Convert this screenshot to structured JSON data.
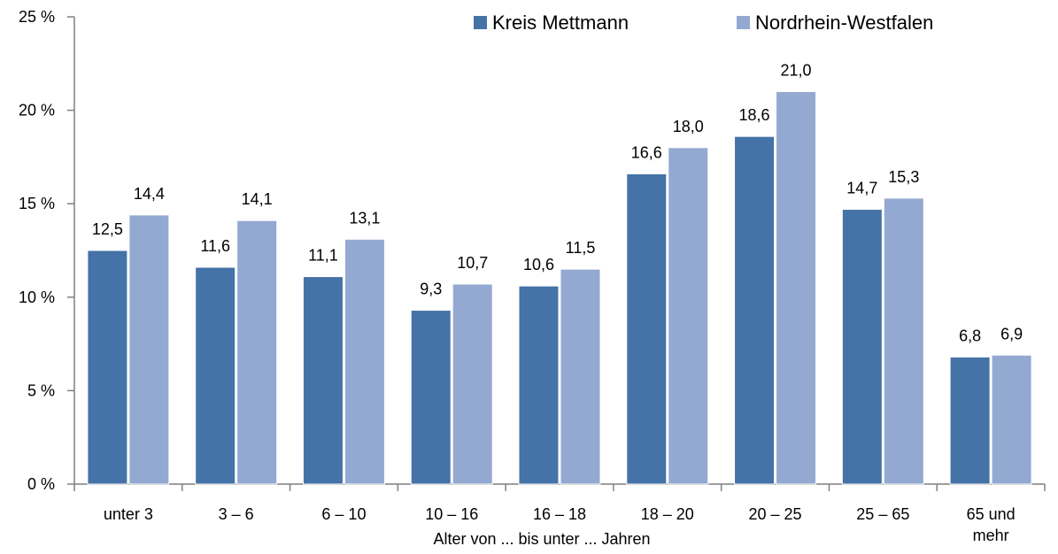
{
  "chart_data": {
    "type": "bar",
    "categories": [
      "unter 3",
      "3 –  6",
      "6 – 10",
      "10 – 16",
      "16 – 18",
      "18 – 20",
      "20 – 25",
      "25 – 65",
      [
        "65 und",
        "mehr"
      ]
    ],
    "series": [
      {
        "name": "Kreis Mettmann",
        "color": "#4572A7",
        "values": [
          12.5,
          11.6,
          11.1,
          9.3,
          10.6,
          16.6,
          18.6,
          14.7,
          6.8
        ],
        "labels": [
          "12,5",
          "11,6",
          "11,1",
          "9,3",
          "10,6",
          "16,6",
          "18,6",
          "14,7",
          "6,8"
        ]
      },
      {
        "name": "Nordrhein-Westfalen",
        "color": "#93A9D1",
        "values": [
          14.4,
          14.1,
          13.1,
          10.7,
          11.5,
          18.0,
          21.0,
          15.3,
          6.9
        ],
        "labels": [
          "14,4",
          "14,1",
          "13,1",
          "10,7",
          "11,5",
          "18,0",
          "21,0",
          "15,3",
          "6,9"
        ]
      }
    ],
    "xlabel": "Alter von ... bis unter ... Jahren",
    "ylabel": "",
    "ylim": [
      0,
      25
    ],
    "yticks": [
      0,
      5,
      10,
      15,
      20,
      25
    ],
    "ytick_labels": [
      "0 %",
      "5 %",
      "10 %",
      "15 %",
      "20 %",
      "25 %"
    ],
    "grid": false,
    "legend_position": "top-right"
  }
}
